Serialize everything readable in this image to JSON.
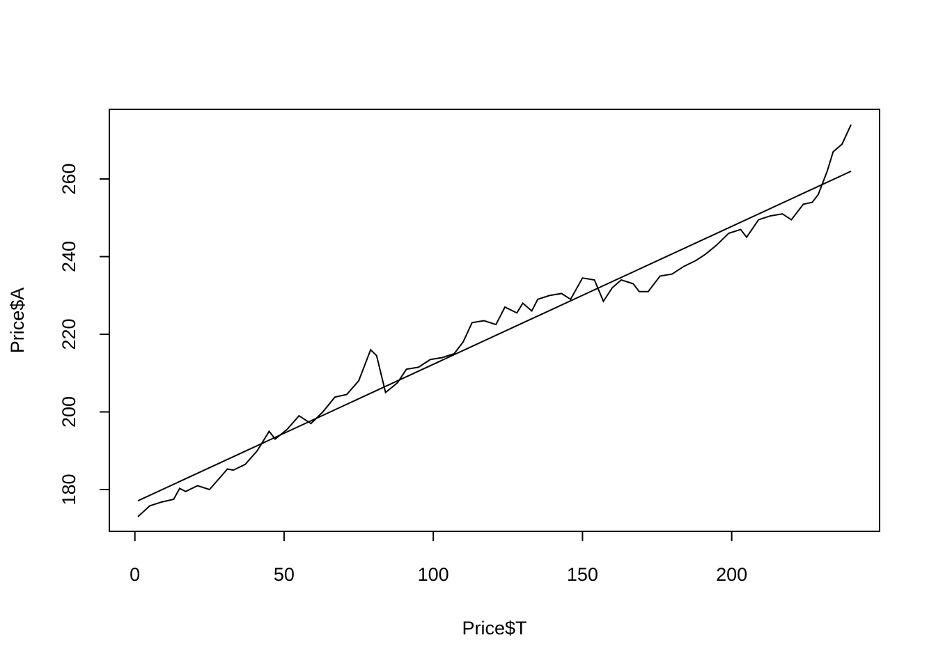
{
  "chart_data": {
    "type": "line",
    "xlabel": "Price$T",
    "ylabel": "Price$A",
    "series": [
      {
        "color": "#000000",
        "x": [
          1,
          5,
          9,
          13,
          15,
          17,
          21,
          25,
          29,
          31,
          33,
          37,
          41,
          45,
          47,
          51,
          55,
          59,
          63,
          67,
          71,
          75,
          79,
          81,
          84,
          88,
          91,
          95,
          99,
          103,
          107,
          110,
          113,
          117,
          121,
          124,
          128,
          130,
          133,
          135,
          139,
          143,
          146,
          150,
          154,
          157,
          160,
          163,
          167,
          169,
          172,
          176,
          180,
          184,
          188,
          191,
          195,
          199,
          203,
          205,
          209,
          213,
          217,
          220,
          224,
          227,
          229,
          232,
          234,
          237,
          240
        ],
        "values": [
          173,
          175.8,
          176.8,
          177.5,
          180.3,
          179.5,
          181,
          180,
          183.5,
          185.3,
          185,
          186.5,
          190,
          195,
          193,
          195.5,
          199,
          197,
          200,
          203.8,
          204.5,
          208,
          216,
          214.5,
          205,
          207.5,
          211,
          211.5,
          213.5,
          214,
          215,
          218,
          223,
          223.5,
          222.5,
          227,
          225.5,
          228,
          226,
          229,
          230,
          230.5,
          229,
          234.5,
          234,
          228.5,
          232,
          234,
          233,
          231,
          231,
          235,
          235.5,
          237.5,
          239,
          240.5,
          243,
          246,
          247,
          245,
          249.5,
          250.5,
          251,
          249.5,
          253.5,
          254,
          256,
          262,
          267,
          269,
          274
        ]
      },
      {
        "color": "#000000",
        "x": [
          1,
          240
        ],
        "values": [
          177.1,
          262.0
        ]
      }
    ],
    "xlim": [
      -8.56,
      249.56
    ],
    "xticks": [
      0,
      50,
      100,
      150,
      200
    ],
    "ylim": [
      169.24,
      277.94
    ],
    "yticks": [
      180,
      200,
      220,
      240,
      260
    ]
  }
}
